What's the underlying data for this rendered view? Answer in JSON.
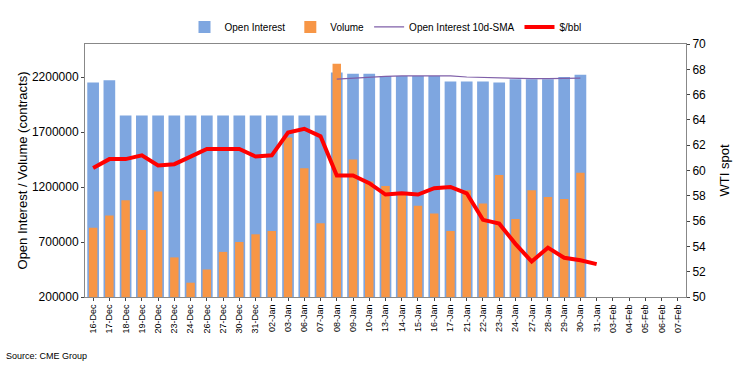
{
  "chart_data": {
    "type": "bar",
    "categories": [
      "16-Dec",
      "17-Dec",
      "18-Dec",
      "19-Dec",
      "20-Dec",
      "23-Dec",
      "24-Dec",
      "26-Dec",
      "27-Dec",
      "30-Dec",
      "31-Dec",
      "02-Jan",
      "03-Jan",
      "06-Jan",
      "07-Jan",
      "08-Jan",
      "09-Jan",
      "10-Jan",
      "13-Jan",
      "14-Jan",
      "15-Jan",
      "16-Jan",
      "17-Jan",
      "21-Jan",
      "22-Jan",
      "23-Jan",
      "24-Jan",
      "27-Jan",
      "28-Jan",
      "29-Jan",
      "30-Jan",
      "31-Jan",
      "03-Feb",
      "04-Feb",
      "05-Feb",
      "06-Feb",
      "07-Feb"
    ],
    "series": [
      {
        "name": "Open Interest",
        "type": "bar",
        "color": "#7ea6e0",
        "values": [
          2150000,
          2170000,
          1850000,
          1850000,
          1850000,
          1850000,
          1850000,
          1850000,
          1850000,
          1850000,
          1850000,
          1850000,
          1850000,
          1850000,
          1850000,
          2240000,
          2230000,
          2230000,
          2210000,
          2210000,
          2210000,
          2210000,
          2160000,
          2160000,
          2160000,
          2150000,
          2180000,
          2180000,
          2180000,
          2200000,
          2220000,
          null,
          null,
          null,
          null,
          null,
          null
        ]
      },
      {
        "name": "Volume",
        "type": "bar",
        "color": "#f79646",
        "values": [
          830000,
          940000,
          1080000,
          810000,
          1160000,
          560000,
          330000,
          450000,
          610000,
          700000,
          770000,
          800000,
          1650000,
          1370000,
          870000,
          2320000,
          1450000,
          1250000,
          1210000,
          1150000,
          1030000,
          960000,
          800000,
          1170000,
          1050000,
          1310000,
          910000,
          1170000,
          1110000,
          1090000,
          1330000,
          null,
          null,
          null,
          null,
          null,
          null
        ]
      },
      {
        "name": "Open Interest 10d-SMA",
        "type": "line",
        "color": "#7f5fa8",
        "values": [
          null,
          null,
          null,
          null,
          null,
          null,
          null,
          null,
          null,
          null,
          null,
          null,
          null,
          null,
          null,
          2180000,
          2190000,
          2200000,
          2205000,
          2210000,
          2210000,
          2215000,
          2210000,
          2200000,
          2195000,
          2190000,
          2190000,
          2185000,
          2185000,
          2185000,
          2190000,
          null,
          null,
          null,
          null,
          null,
          null
        ]
      },
      {
        "name": "$/bbl",
        "type": "line",
        "color": "#ff0000",
        "axis": "y2",
        "values": [
          60.2,
          60.9,
          60.9,
          61.2,
          60.4,
          60.5,
          61.1,
          61.7,
          61.7,
          61.7,
          61.1,
          61.2,
          63.0,
          63.3,
          62.7,
          59.6,
          59.6,
          59.0,
          58.1,
          58.2,
          58.1,
          58.6,
          58.7,
          58.2,
          56.1,
          55.8,
          54.2,
          52.8,
          53.9,
          53.1,
          52.9,
          52.6,
          null,
          null,
          null,
          null,
          null
        ]
      }
    ],
    "y_label": "Open Interest / Volume (contracts)",
    "y2_label": "WTI spot",
    "ylim": [
      200000,
      2500000
    ],
    "yticks": [
      200000,
      700000,
      1200000,
      1700000,
      2200000
    ],
    "y2lim": [
      50,
      70
    ],
    "y2ticks": [
      50,
      52,
      54,
      56,
      58,
      60,
      62,
      64,
      66,
      68,
      70
    ],
    "source": "Source: CME Group",
    "grid": false,
    "legend": "top"
  }
}
